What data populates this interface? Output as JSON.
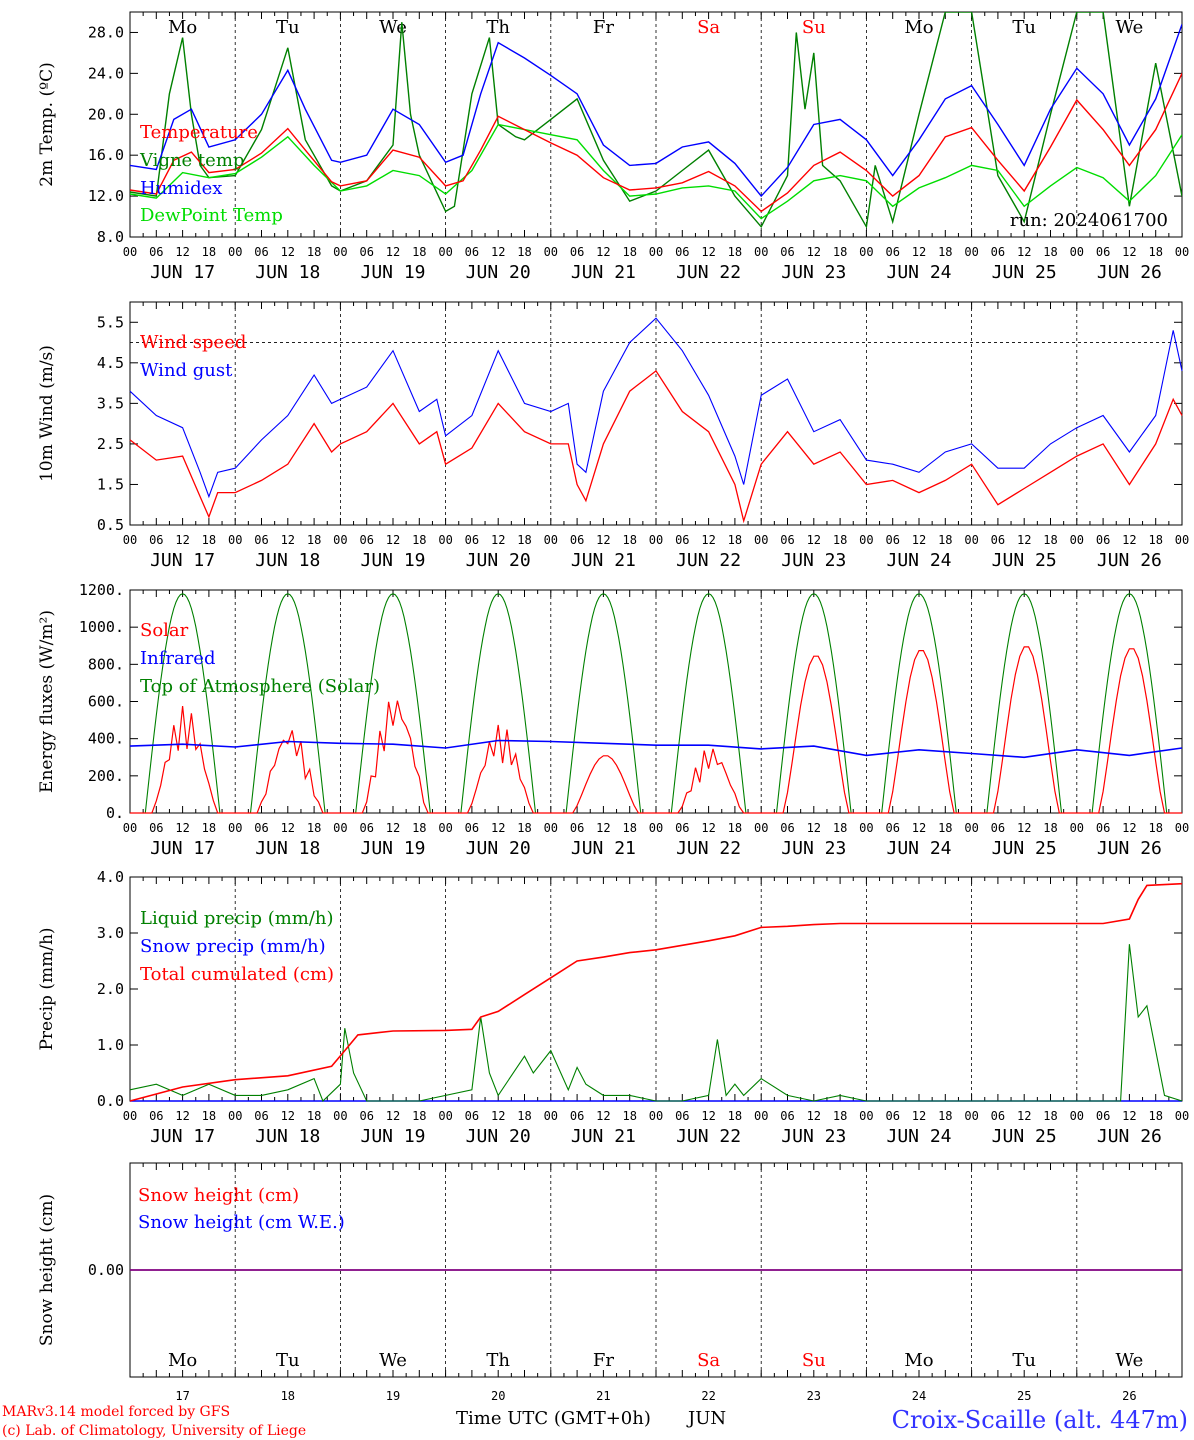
{
  "run_label": "run: 2024061700",
  "weekdays": [
    "Mo",
    "Tu",
    "We",
    "Th",
    "Fr",
    "Sa",
    "Su",
    "Mo",
    "Tu",
    "We"
  ],
  "weekend_days": [
    5,
    6
  ],
  "date_labels": [
    "JUN 17",
    "JUN 18",
    "JUN 19",
    "JUN 20",
    "JUN 21",
    "JUN 22",
    "JUN 23",
    "JUN 24",
    "JUN 25",
    "JUN 26"
  ],
  "hour_labels": [
    "00",
    "06",
    "12",
    "18"
  ],
  "day_numbers": [
    "17",
    "18",
    "19",
    "20",
    "21",
    "22",
    "23",
    "24",
    "25",
    "26"
  ],
  "month_label": "JUN",
  "footer": {
    "model": "MARv3.14 model forced by GFS",
    "lab": "(c) Lab. of Climatology, University of Liege",
    "time_axis": "Time UTC (GMT+0h)",
    "station": "Croix-Scaille (alt. 447m)"
  },
  "colors": {
    "red": "#ff0000",
    "green": "#008000",
    "blue": "#0000ff",
    "lime": "#00dd00",
    "purple": "#800080",
    "station": "#3333ff"
  },
  "chart_data": [
    {
      "type": "line",
      "ylabel": "2m Temp. (ºC)",
      "ylim": [
        8,
        30
      ],
      "yticks": [
        "8.0",
        "12.0",
        "16.0",
        "20.0",
        "24.0",
        "28.0"
      ],
      "x_unit": "hours since 2024-06-17 00 UTC",
      "series": [
        {
          "name": "Temperature",
          "color": "#ff0000",
          "x": [
            0,
            6,
            10,
            14,
            18,
            24,
            30,
            36,
            40,
            46,
            48,
            54,
            60,
            66,
            72,
            76,
            80,
            84,
            90,
            96,
            102,
            108,
            114,
            120,
            126,
            132,
            138,
            144,
            150,
            156,
            162,
            168,
            174,
            180,
            186,
            192,
            198,
            204,
            210,
            216,
            222,
            228,
            234,
            240
          ],
          "y": [
            12.6,
            12.2,
            15.5,
            16.3,
            14.3,
            14.6,
            16.2,
            18.6,
            16.5,
            13.4,
            13.0,
            13.5,
            16.5,
            15.8,
            13.0,
            13.5,
            16.5,
            19.8,
            18.5,
            17.2,
            16.0,
            13.8,
            12.6,
            12.8,
            13.3,
            14.4,
            13.0,
            10.5,
            12.3,
            15.0,
            16.3,
            14.5,
            12.0,
            14.0,
            17.8,
            18.7,
            15.5,
            12.5,
            16.8,
            21.4,
            18.5,
            15.0,
            18.5,
            24.0
          ]
        },
        {
          "name": "Vigne temp",
          "color": "#008000",
          "x": [
            0,
            6,
            9,
            12,
            14,
            16,
            18,
            24,
            30,
            36,
            40,
            46,
            48,
            54,
            60,
            62,
            64,
            66,
            72,
            74,
            78,
            82,
            84,
            88,
            90,
            96,
            102,
            108,
            114,
            120,
            126,
            132,
            138,
            144,
            150,
            152,
            154,
            156,
            158,
            162,
            168,
            170,
            174,
            180,
            186,
            192,
            198,
            204,
            210,
            216,
            222,
            228,
            234,
            240
          ],
          "y": [
            12.4,
            12.0,
            22.0,
            27.5,
            20.0,
            15.0,
            13.8,
            14.0,
            18.5,
            26.5,
            17.5,
            13.0,
            12.5,
            13.5,
            17.0,
            29.0,
            20.0,
            16.0,
            10.5,
            11.0,
            22.0,
            27.5,
            19.0,
            17.8,
            17.5,
            19.5,
            21.5,
            15.5,
            11.5,
            12.5,
            14.5,
            16.5,
            12.0,
            9.0,
            14.0,
            28.0,
            20.5,
            26.0,
            15.0,
            13.5,
            9.0,
            15.0,
            9.5,
            20.0,
            30.0,
            30.0,
            14.0,
            9.5,
            20.0,
            30.0,
            30.0,
            11.0,
            25.0,
            12.0
          ]
        },
        {
          "name": "Humidex",
          "color": "#0000ff",
          "x": [
            0,
            6,
            10,
            14,
            18,
            24,
            30,
            36,
            40,
            46,
            48,
            54,
            60,
            66,
            72,
            76,
            80,
            84,
            90,
            96,
            102,
            108,
            114,
            120,
            126,
            132,
            138,
            144,
            150,
            156,
            162,
            168,
            174,
            180,
            186,
            192,
            198,
            204,
            210,
            216,
            222,
            228,
            234,
            240
          ],
          "y": [
            15.0,
            14.6,
            19.5,
            20.5,
            16.8,
            17.5,
            20.0,
            24.3,
            20.5,
            15.5,
            15.3,
            16.0,
            20.5,
            19.0,
            15.3,
            16.0,
            22.0,
            27.0,
            25.5,
            23.8,
            22.0,
            17.0,
            15.0,
            15.2,
            16.8,
            17.3,
            15.2,
            12.0,
            14.8,
            19.0,
            19.5,
            17.5,
            14.0,
            17.5,
            21.5,
            22.8,
            19.0,
            15.0,
            20.5,
            24.5,
            22.0,
            17.0,
            21.5,
            28.8
          ]
        },
        {
          "name": "DewPoint Temp",
          "color": "#00dd00",
          "x": [
            0,
            6,
            12,
            18,
            24,
            30,
            36,
            42,
            48,
            54,
            60,
            66,
            72,
            78,
            84,
            90,
            96,
            102,
            108,
            114,
            120,
            126,
            132,
            138,
            144,
            150,
            156,
            162,
            168,
            174,
            180,
            186,
            192,
            198,
            204,
            210,
            216,
            222,
            228,
            234,
            240
          ],
          "y": [
            12.2,
            11.8,
            14.3,
            13.8,
            14.2,
            15.8,
            17.8,
            15.0,
            12.5,
            13.0,
            14.5,
            14.0,
            12.2,
            14.5,
            19.0,
            18.5,
            18.0,
            17.5,
            14.5,
            12.0,
            12.2,
            12.8,
            13.0,
            12.5,
            9.8,
            11.5,
            13.5,
            14.0,
            13.5,
            11.0,
            12.8,
            13.8,
            15.0,
            14.5,
            11.0,
            13.0,
            14.8,
            13.8,
            11.5,
            14.0,
            18.0
          ]
        }
      ]
    },
    {
      "type": "line",
      "ylabel": "10m Wind (m/s)",
      "ylim": [
        0.5,
        6.0
      ],
      "yticks": [
        "0.5",
        "1.5",
        "2.5",
        "3.5",
        "4.5",
        "5.5"
      ],
      "reference_line": 5.0,
      "series": [
        {
          "name": "Wind speed",
          "color": "#ff0000",
          "x": [
            0,
            6,
            12,
            16,
            18,
            20,
            24,
            30,
            36,
            42,
            46,
            48,
            54,
            60,
            66,
            70,
            72,
            78,
            84,
            90,
            96,
            100,
            102,
            104,
            108,
            114,
            120,
            126,
            132,
            138,
            140,
            144,
            150,
            156,
            162,
            168,
            174,
            180,
            186,
            192,
            198,
            204,
            210,
            216,
            222,
            228,
            234,
            238,
            240
          ],
          "y": [
            2.6,
            2.1,
            2.2,
            1.2,
            0.7,
            1.3,
            1.3,
            1.6,
            2.0,
            3.0,
            2.3,
            2.5,
            2.8,
            3.5,
            2.5,
            2.8,
            2.0,
            2.4,
            3.5,
            2.8,
            2.5,
            2.5,
            1.5,
            1.1,
            2.5,
            3.8,
            4.3,
            3.3,
            2.8,
            1.5,
            0.6,
            2.0,
            2.8,
            2.0,
            2.3,
            1.5,
            1.6,
            1.3,
            1.6,
            2.0,
            1.0,
            1.4,
            1.8,
            2.2,
            2.5,
            1.5,
            2.5,
            3.6,
            3.2
          ]
        },
        {
          "name": "Wind gust",
          "color": "#0000ff",
          "x": [
            0,
            6,
            12,
            16,
            18,
            20,
            24,
            30,
            36,
            42,
            46,
            48,
            54,
            60,
            66,
            70,
            72,
            78,
            84,
            90,
            96,
            100,
            102,
            104,
            108,
            114,
            120,
            126,
            132,
            138,
            140,
            144,
            150,
            156,
            162,
            168,
            174,
            180,
            186,
            192,
            198,
            204,
            210,
            216,
            222,
            228,
            234,
            238,
            240
          ],
          "y": [
            3.8,
            3.2,
            2.9,
            1.8,
            1.2,
            1.8,
            1.9,
            2.6,
            3.2,
            4.2,
            3.5,
            3.6,
            3.9,
            4.8,
            3.3,
            3.6,
            2.7,
            3.2,
            4.8,
            3.5,
            3.3,
            3.5,
            2.0,
            1.8,
            3.8,
            5.0,
            5.6,
            4.8,
            3.7,
            2.2,
            1.5,
            3.7,
            4.1,
            2.8,
            3.1,
            2.1,
            2.0,
            1.8,
            2.3,
            2.5,
            1.9,
            1.9,
            2.5,
            2.9,
            3.2,
            2.3,
            3.2,
            5.3,
            4.3
          ]
        }
      ]
    },
    {
      "type": "line",
      "ylabel": "Energy fluxes (W/m²)",
      "ylim": [
        0,
        1200
      ],
      "yticks": [
        "0.",
        "200.",
        "400.",
        "600.",
        "800.",
        "1000.",
        "1200."
      ],
      "series": [
        {
          "name": "Solar",
          "color": "#ff0000"
        },
        {
          "name": "Infrared",
          "color": "#0000ff",
          "x": [
            0,
            12,
            24,
            36,
            48,
            60,
            72,
            84,
            96,
            108,
            120,
            132,
            144,
            156,
            168,
            180,
            192,
            204,
            216,
            228,
            240
          ],
          "y": [
            360,
            370,
            355,
            385,
            375,
            370,
            350,
            390,
            385,
            375,
            365,
            365,
            345,
            360,
            310,
            340,
            320,
            300,
            340,
            310,
            350
          ]
        },
        {
          "name": "Top of Atmosphere (Solar)",
          "color": "#008000",
          "peak": 1180,
          "daylight_hours": [
            3.5,
            20.5
          ]
        }
      ],
      "solar_daily_peaks": [
        580,
        470,
        650,
        480,
        310,
        360,
        850,
        880,
        900,
        890
      ]
    },
    {
      "type": "line",
      "ylabel": "Precip (mm/h)",
      "ylim": [
        0,
        4.0
      ],
      "yticks": [
        "0.0",
        "1.0",
        "2.0",
        "3.0",
        "4.0"
      ],
      "series": [
        {
          "name": "Liquid precip (mm/h)",
          "color": "#008000",
          "x": [
            0,
            6,
            12,
            18,
            24,
            30,
            36,
            42,
            44,
            48,
            49,
            51,
            54,
            60,
            66,
            78,
            80,
            82,
            84,
            90,
            92,
            96,
            100,
            102,
            104,
            108,
            114,
            120,
            126,
            132,
            134,
            136,
            138,
            140,
            144,
            150,
            156,
            162,
            168,
            174,
            180,
            186,
            192,
            198,
            204,
            210,
            214,
            222,
            226,
            228,
            230,
            232,
            236,
            240
          ],
          "y": [
            0.2,
            0.3,
            0.1,
            0.3,
            0.1,
            0.1,
            0.2,
            0.4,
            0.0,
            0.3,
            1.3,
            0.5,
            0.0,
            0.0,
            0.0,
            0.2,
            1.5,
            0.5,
            0.1,
            0.8,
            0.5,
            0.9,
            0.2,
            0.6,
            0.3,
            0.1,
            0.1,
            0.0,
            0.0,
            0.1,
            1.1,
            0.1,
            0.3,
            0.1,
            0.4,
            0.1,
            0.0,
            0.1,
            0.0,
            0.0,
            0.0,
            0.0,
            0.0,
            0.0,
            0.0,
            0.0,
            0.0,
            0.0,
            0.0,
            2.8,
            1.5,
            1.7,
            0.1,
            0.0
          ]
        },
        {
          "name": "Snow precip (mm/h)",
          "color": "#0000ff",
          "x": [
            0,
            240
          ],
          "y": [
            0,
            0
          ]
        },
        {
          "name": "Total cumulated (cm)",
          "color": "#ff0000",
          "x": [
            0,
            12,
            24,
            36,
            46,
            49,
            52,
            60,
            72,
            78,
            80,
            84,
            90,
            96,
            102,
            108,
            114,
            120,
            126,
            132,
            138,
            144,
            150,
            156,
            162,
            168,
            180,
            192,
            204,
            216,
            222,
            228,
            230,
            232,
            240
          ],
          "y": [
            0.0,
            0.25,
            0.38,
            0.45,
            0.62,
            0.9,
            1.18,
            1.25,
            1.26,
            1.28,
            1.5,
            1.6,
            1.9,
            2.2,
            2.5,
            2.57,
            2.65,
            2.7,
            2.78,
            2.86,
            2.95,
            3.1,
            3.12,
            3.15,
            3.17,
            3.17,
            3.17,
            3.17,
            3.17,
            3.17,
            3.17,
            3.25,
            3.6,
            3.85,
            3.88
          ]
        }
      ]
    },
    {
      "type": "line",
      "ylabel": "Snow height (cm)",
      "yticks": [
        "0.00"
      ],
      "series": [
        {
          "name": "Snow height (cm)",
          "color": "#ff0000",
          "x": [
            0,
            240
          ],
          "y": [
            0,
            0
          ]
        },
        {
          "name": "Snow height (cm W.E.)",
          "color": "#0000ff",
          "x": [
            0,
            240
          ],
          "y": [
            0,
            0
          ]
        }
      ]
    }
  ]
}
